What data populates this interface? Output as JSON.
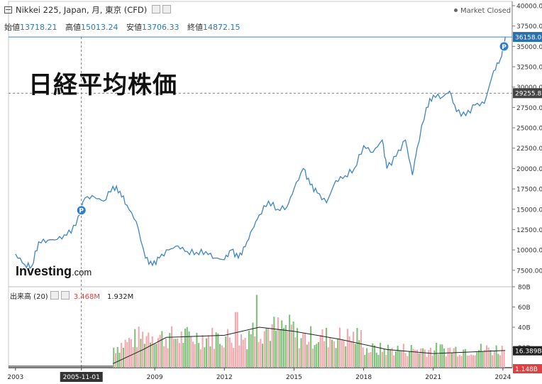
{
  "header": {
    "symbol": "Nikkei 225, Japan, 月, 東京 (CFD)",
    "open_label": "始値",
    "open": "13718.21",
    "high_label": "高値",
    "high": "15013.24",
    "low_label": "安値",
    "low": "13706.33",
    "close_label": "終値",
    "close": "14872.15",
    "market_status": "Market Closed"
  },
  "overlay_title": "日経平均株価",
  "logo": {
    "main": "Investing",
    "suffix": ".com"
  },
  "volume_header": {
    "label": "出来高 (20)",
    "v1": "3.468M",
    "v2": "1.932M"
  },
  "colors": {
    "line": "#3e84c4",
    "up": "#7fc07a",
    "down": "#f2a9ae",
    "marker": "#2f7fd0",
    "red_label": "#d9443e"
  },
  "chart_data": {
    "type": "line",
    "x_tick_labels": [
      "2003",
      "2005-11-01",
      "2009",
      "2012",
      "2015",
      "2018",
      "2021",
      "2024"
    ],
    "y_tick_labels": [
      "40000.0",
      "37500.0",
      "35000.0",
      "32500.0",
      "30000.0",
      "27500.0",
      "25000.0",
      "22500.0",
      "20000.0",
      "17500.0",
      "15000.0",
      "12500.0",
      "10000.0",
      "7500.00"
    ],
    "y_ticks": [
      40000,
      37500,
      35000,
      32500,
      30000,
      27500,
      25000,
      22500,
      20000,
      17500,
      15000,
      12500,
      10000,
      7500
    ],
    "ylim": [
      6000,
      40000
    ],
    "xlim": [
      2002.7,
      2024.4
    ],
    "current_price_label": "36158.0",
    "crosshair_price_label": "29255.8",
    "crosshair_price": 29255.8,
    "crosshair_date": 2005.84,
    "markers": [
      {
        "x": 2005.84,
        "y": 14872.15,
        "label": "P"
      },
      {
        "x": 2024.05,
        "y": 35000,
        "label": "P"
      }
    ],
    "series": [
      {
        "x": [
          2003.0,
          2003.4,
          2003.7,
          2004.0,
          2004.4,
          2004.8,
          2005.2,
          2005.6,
          2006.0,
          2006.4,
          2006.8,
          2007.2,
          2007.5,
          2007.8,
          2008.2,
          2008.6,
          2008.9,
          2009.2,
          2009.6,
          2010.0,
          2010.4,
          2010.8,
          2011.2,
          2011.6,
          2012.0,
          2012.3,
          2012.6,
          2012.9,
          2013.2,
          2013.5,
          2013.9,
          2014.3,
          2014.7,
          2015.0,
          2015.4,
          2015.7,
          2016.0,
          2016.4,
          2016.8,
          2017.2,
          2017.6,
          2018.0,
          2018.4,
          2018.8,
          2019.0,
          2019.4,
          2019.8,
          2020.1,
          2020.3,
          2020.7,
          2021.0,
          2021.4,
          2021.7,
          2022.0,
          2022.4,
          2022.8,
          2023.2,
          2023.6,
          2023.9,
          2024.1
        ],
        "y": [
          9500,
          8200,
          8000,
          11000,
          11200,
          11300,
          11800,
          13000,
          16400,
          16500,
          16000,
          17800,
          17200,
          15500,
          13500,
          9000,
          8100,
          9000,
          10000,
          10500,
          9800,
          9700,
          9800,
          9000,
          8800,
          10000,
          9000,
          10400,
          12500,
          14300,
          16000,
          15000,
          15300,
          17500,
          20000,
          18000,
          17000,
          15800,
          18500,
          19100,
          20000,
          22800,
          22000,
          23500,
          20000,
          21500,
          23500,
          19200,
          22500,
          27500,
          29000,
          28800,
          29500,
          27000,
          26500,
          27800,
          28000,
          32000,
          33500,
          36158
        ]
      }
    ]
  },
  "volume_data": {
    "y_tick_labels": [
      "80B",
      "60B",
      "40B",
      "20B"
    ],
    "y_ticks": [
      80,
      60,
      40,
      20
    ],
    "ylim": [
      0,
      80
    ],
    "right_labels": [
      "16.389B",
      "1.148B"
    ]
  }
}
